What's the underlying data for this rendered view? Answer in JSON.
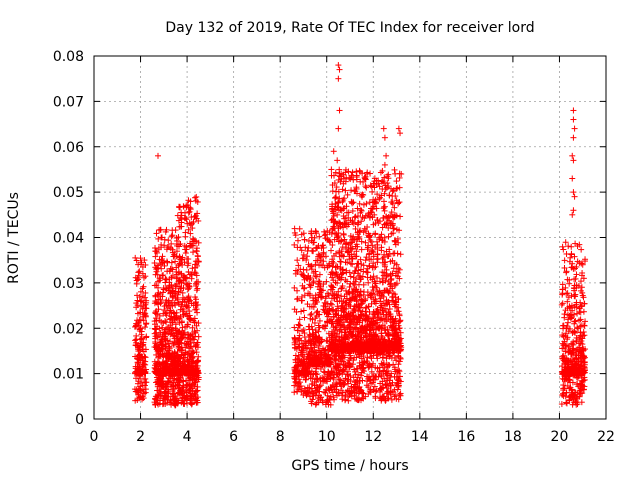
{
  "chart_data": {
    "type": "scatter",
    "title": "Day 132 of 2019, Rate Of TEC Index for receiver lord",
    "xlabel": "GPS time / hours",
    "ylabel": "ROTI / TECUs",
    "xlim": [
      0,
      22
    ],
    "ylim": [
      0,
      0.08
    ],
    "xticks": [
      "0",
      "2",
      "4",
      "6",
      "8",
      "10",
      "12",
      "14",
      "16",
      "18",
      "20",
      "22"
    ],
    "yticks": [
      "0",
      "0.01",
      "0.02",
      "0.03",
      "0.04",
      "0.05",
      "0.06",
      "0.07",
      "0.08"
    ],
    "grid": true,
    "marker": "plus",
    "color": "#ff0000",
    "clusters": [
      {
        "x_range": [
          1.75,
          2.25
        ],
        "y_range": [
          0.004,
          0.036
        ],
        "y_mode": 0.01,
        "count": 220
      },
      {
        "x_range": [
          2.6,
          3.6
        ],
        "y_range": [
          0.003,
          0.042
        ],
        "y_mode": 0.01,
        "count": 650
      },
      {
        "x_range": [
          3.6,
          4.5
        ],
        "y_range": [
          0.003,
          0.049
        ],
        "y_mode": 0.01,
        "count": 600
      },
      {
        "x_range": [
          8.6,
          9.2
        ],
        "y_range": [
          0.005,
          0.042
        ],
        "y_mode": 0.01,
        "count": 220
      },
      {
        "x_range": [
          9.2,
          10.2
        ],
        "y_range": [
          0.003,
          0.042
        ],
        "y_mode": 0.012,
        "count": 500
      },
      {
        "x_range": [
          10.2,
          11.5
        ],
        "y_range": [
          0.004,
          0.055
        ],
        "y_mode": 0.015,
        "count": 900
      },
      {
        "x_range": [
          11.5,
          13.2
        ],
        "y_range": [
          0.004,
          0.055
        ],
        "y_mode": 0.015,
        "count": 1000
      },
      {
        "x_range": [
          20.1,
          21.1
        ],
        "y_range": [
          0.003,
          0.039
        ],
        "y_mode": 0.01,
        "count": 500
      }
    ],
    "outliers": [
      {
        "x": 2.75,
        "y": 0.058
      },
      {
        "x": 10.5,
        "y": 0.078
      },
      {
        "x": 10.55,
        "y": 0.077
      },
      {
        "x": 10.5,
        "y": 0.075
      },
      {
        "x": 10.55,
        "y": 0.068
      },
      {
        "x": 10.5,
        "y": 0.064
      },
      {
        "x": 10.3,
        "y": 0.059
      },
      {
        "x": 10.45,
        "y": 0.057
      },
      {
        "x": 10.2,
        "y": 0.055
      },
      {
        "x": 10.35,
        "y": 0.052
      },
      {
        "x": 12.45,
        "y": 0.064
      },
      {
        "x": 12.5,
        "y": 0.062
      },
      {
        "x": 12.55,
        "y": 0.058
      },
      {
        "x": 12.5,
        "y": 0.056
      },
      {
        "x": 12.6,
        "y": 0.052
      },
      {
        "x": 13.1,
        "y": 0.064
      },
      {
        "x": 13.15,
        "y": 0.063
      },
      {
        "x": 13.2,
        "y": 0.054
      },
      {
        "x": 11.65,
        "y": 0.053
      },
      {
        "x": 11.7,
        "y": 0.051
      },
      {
        "x": 20.6,
        "y": 0.068
      },
      {
        "x": 20.6,
        "y": 0.066
      },
      {
        "x": 20.65,
        "y": 0.064
      },
      {
        "x": 20.6,
        "y": 0.062
      },
      {
        "x": 20.55,
        "y": 0.058
      },
      {
        "x": 20.6,
        "y": 0.057
      },
      {
        "x": 20.55,
        "y": 0.053
      },
      {
        "x": 20.6,
        "y": 0.05
      },
      {
        "x": 20.65,
        "y": 0.049
      },
      {
        "x": 20.6,
        "y": 0.046
      },
      {
        "x": 20.55,
        "y": 0.045
      },
      {
        "x": 21.05,
        "y": 0.031
      },
      {
        "x": 21.0,
        "y": 0.034
      }
    ]
  }
}
